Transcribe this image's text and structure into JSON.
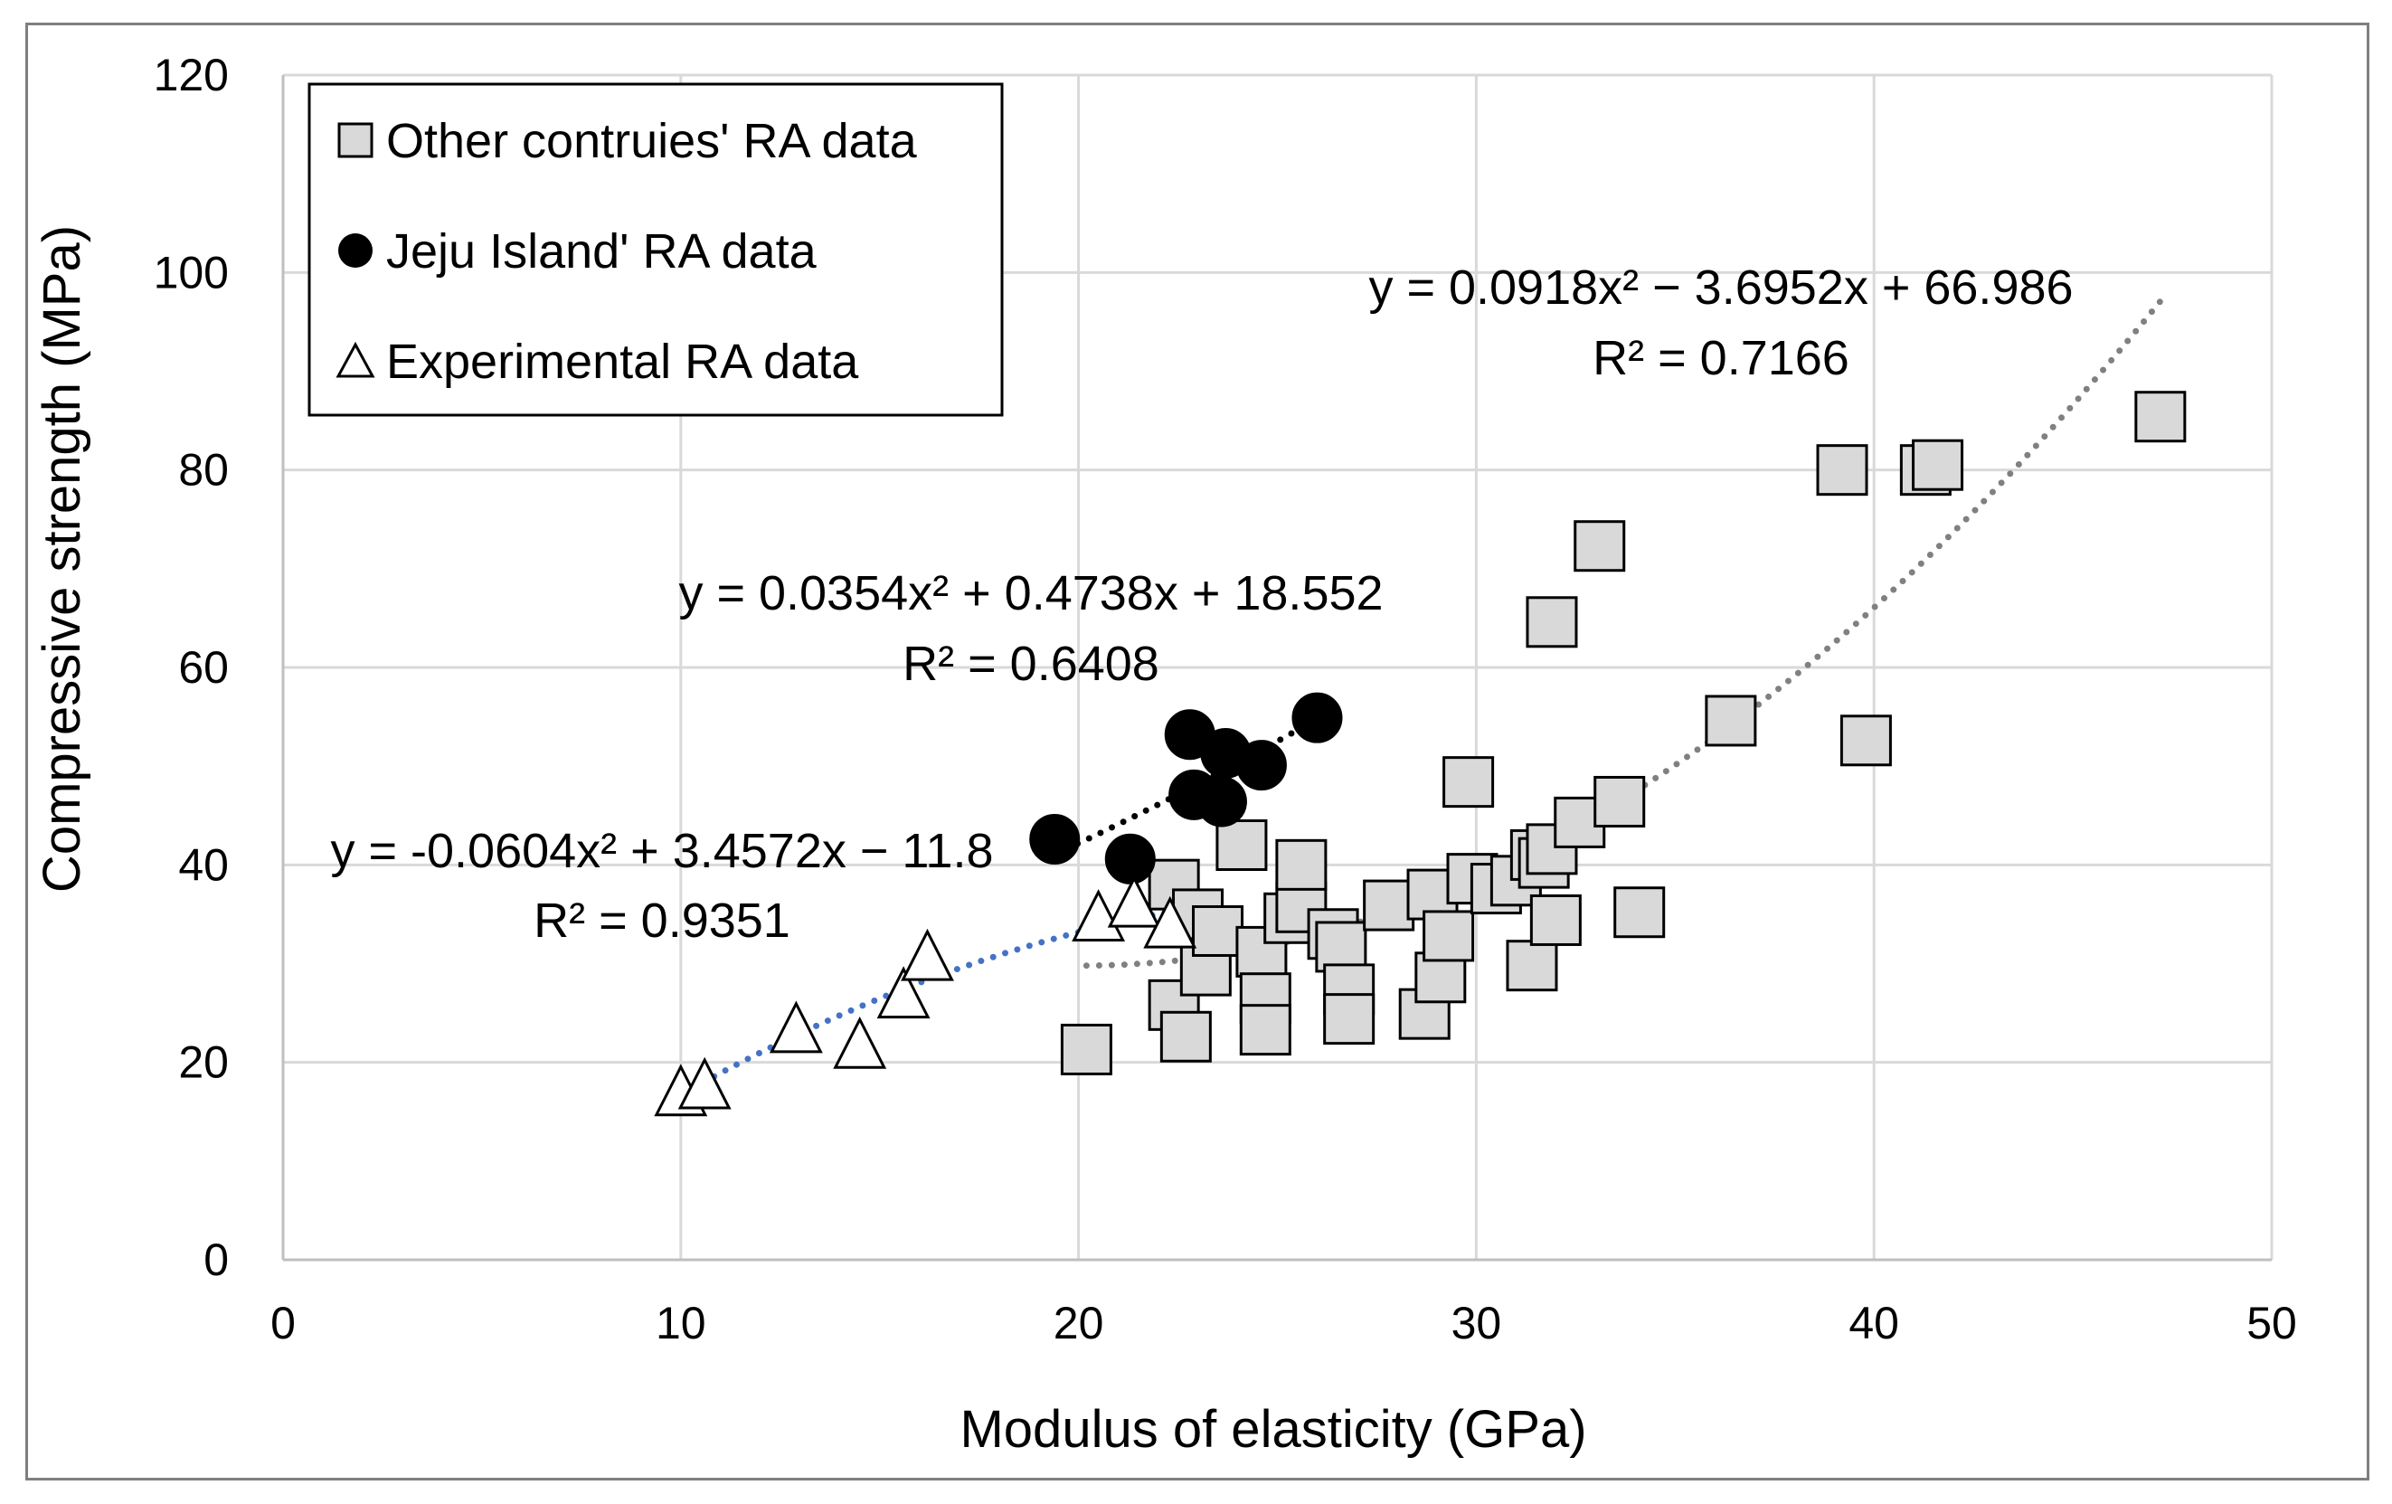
{
  "chart_data": {
    "type": "scatter",
    "xlabel": "Modulus of elasticity (GPa)",
    "ylabel": "Compressive strength (MPa)",
    "xlim": [
      0,
      50
    ],
    "ylim": [
      0,
      120
    ],
    "xticks": [
      0,
      10,
      20,
      30,
      40,
      50
    ],
    "yticks": [
      0,
      20,
      40,
      60,
      80,
      100,
      120
    ],
    "grid": true,
    "legend_position": "top-left",
    "series": [
      {
        "name": "Other contruies' RA data",
        "marker": "square",
        "color": "#d9d9d9",
        "edge": "#000000",
        "points": [
          [
            20.2,
            21.3
          ],
          [
            22.4,
            38.0
          ],
          [
            22.4,
            25.8
          ],
          [
            22.7,
            22.6
          ],
          [
            23.0,
            35.0
          ],
          [
            23.2,
            29.3
          ],
          [
            23.5,
            33.3
          ],
          [
            24.1,
            42.0
          ],
          [
            24.6,
            31.2
          ],
          [
            24.7,
            26.5
          ],
          [
            24.7,
            23.3
          ],
          [
            25.3,
            34.6
          ],
          [
            25.6,
            35.7
          ],
          [
            25.6,
            40.0
          ],
          [
            26.4,
            33.0
          ],
          [
            26.6,
            31.7
          ],
          [
            26.8,
            27.4
          ],
          [
            26.8,
            24.4
          ],
          [
            27.8,
            35.9
          ],
          [
            28.7,
            24.9
          ],
          [
            28.9,
            37.0
          ],
          [
            29.1,
            28.6
          ],
          [
            29.3,
            32.8
          ],
          [
            29.8,
            48.4
          ],
          [
            29.9,
            38.6
          ],
          [
            30.5,
            37.6
          ],
          [
            31.0,
            38.4
          ],
          [
            31.4,
            29.8
          ],
          [
            31.5,
            41.0
          ],
          [
            31.7,
            40.2
          ],
          [
            31.9,
            41.6
          ],
          [
            31.9,
            64.6
          ],
          [
            32.0,
            34.4
          ],
          [
            32.6,
            44.3
          ],
          [
            33.1,
            72.3
          ],
          [
            33.6,
            46.4
          ],
          [
            34.1,
            35.2
          ],
          [
            36.4,
            54.6
          ],
          [
            39.2,
            80.0
          ],
          [
            39.8,
            52.6
          ],
          [
            41.3,
            80.0
          ],
          [
            41.6,
            80.5
          ],
          [
            47.2,
            85.4
          ]
        ]
      },
      {
        "name": "Jeju Island' RA data",
        "marker": "circle",
        "color": "#000000",
        "edge": "#000000",
        "points": [
          [
            19.4,
            42.6
          ],
          [
            21.3,
            40.6
          ],
          [
            22.8,
            53.2
          ],
          [
            22.9,
            47.1
          ],
          [
            23.7,
            51.3
          ],
          [
            23.6,
            46.4
          ],
          [
            24.6,
            50.1
          ],
          [
            26.0,
            54.9
          ]
        ]
      },
      {
        "name": "Experimental RA data",
        "marker": "triangle",
        "color": "#ffffff",
        "edge": "#000000",
        "points": [
          [
            10.0,
            16.7
          ],
          [
            10.6,
            17.4
          ],
          [
            12.9,
            23.1
          ],
          [
            14.5,
            21.5
          ],
          [
            15.6,
            26.6
          ],
          [
            16.2,
            30.4
          ],
          [
            20.5,
            34.4
          ],
          [
            21.4,
            35.8
          ],
          [
            22.3,
            33.7
          ]
        ]
      }
    ],
    "trendlines": [
      {
        "series": "Other contruies' RA data",
        "type": "polynomial",
        "coefficients": [
          0.0918,
          -3.6952,
          66.986
        ],
        "x_range": [
          20.2,
          47.2
        ],
        "color": "#808080",
        "equation": "y = 0.0918x² − 3.6952x + 66.986",
        "r2": "R² = 0.7166"
      },
      {
        "series": "Jeju Island' RA data",
        "type": "polynomial",
        "coefficients": [
          0.0354,
          0.4738,
          18.552
        ],
        "x_range": [
          19.4,
          26.0
        ],
        "color": "#000000",
        "equation": "y = 0.0354x² + 0.4738x + 18.552",
        "r2": "R² = 0.6408"
      },
      {
        "series": "Experimental RA data",
        "type": "polynomial",
        "coefficients": [
          -0.0604,
          3.4572,
          -11.8
        ],
        "x_range": [
          10.0,
          22.3
        ],
        "color": "#4472c4",
        "equation": "y = -0.0604x² + 3.4572x − 11.8",
        "r2": "R² = 0.9351"
      }
    ]
  }
}
